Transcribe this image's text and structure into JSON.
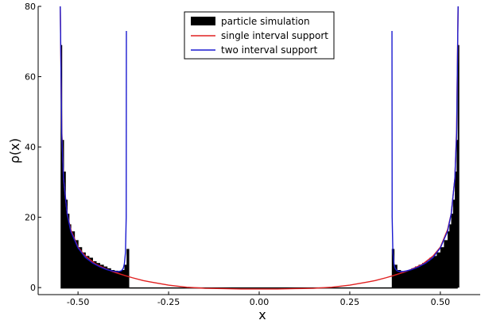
{
  "chart_data": {
    "type": "line",
    "title": "",
    "xlabel": "x",
    "ylabel": "ρ(x)",
    "xlim": [
      -0.61,
      0.61
    ],
    "ylim": [
      -2,
      80
    ],
    "x_ticks": [
      -0.5,
      -0.25,
      0,
      0.25,
      0.5
    ],
    "x_tick_labels": [
      "-0.50",
      "-0.25",
      "0.00",
      "0.25",
      "0.50"
    ],
    "y_ticks": [
      0,
      20,
      40,
      60,
      80
    ],
    "y_tick_labels": [
      "0",
      "20",
      "40",
      "60",
      "80"
    ],
    "grid": false,
    "legend_position": "top-center",
    "series": [
      {
        "name": "particle simulation",
        "kind": "histogram",
        "color": "#000000",
        "bins_x": [
          -0.548,
          -0.545,
          -0.54,
          -0.535,
          -0.53,
          -0.525,
          -0.52,
          -0.51,
          -0.5,
          -0.49,
          -0.48,
          -0.47,
          -0.46,
          -0.45,
          -0.44,
          -0.43,
          -0.42,
          -0.41,
          -0.4,
          -0.39,
          -0.38,
          -0.372,
          -0.366,
          0.366,
          0.372,
          0.38,
          0.39,
          0.4,
          0.41,
          0.42,
          0.43,
          0.44,
          0.45,
          0.46,
          0.47,
          0.48,
          0.49,
          0.5,
          0.51,
          0.52,
          0.525,
          0.53,
          0.535,
          0.54,
          0.545,
          0.548
        ],
        "bins_y": [
          69,
          42,
          33,
          25,
          21,
          18,
          16,
          13.5,
          11.5,
          10,
          9,
          8.5,
          7.5,
          7,
          6.5,
          6,
          5.5,
          5,
          4.8,
          4.7,
          5,
          6.5,
          11,
          11,
          6.5,
          5,
          4.7,
          4.8,
          5,
          5.5,
          6,
          6.5,
          7,
          7.5,
          8.5,
          9,
          10,
          11.5,
          13.5,
          16,
          18,
          21,
          25,
          33,
          42,
          69
        ]
      },
      {
        "name": "single interval support",
        "kind": "line",
        "color": "#e02020",
        "x": [
          -0.549,
          -0.545,
          -0.54,
          -0.53,
          -0.52,
          -0.5,
          -0.48,
          -0.45,
          -0.42,
          -0.4,
          -0.37,
          -0.35,
          -0.32,
          -0.3,
          -0.25,
          -0.2,
          -0.15,
          -0.1,
          -0.05,
          0,
          0.05,
          0.1,
          0.15,
          0.2,
          0.25,
          0.3,
          0.32,
          0.35,
          0.37,
          0.4,
          0.42,
          0.45,
          0.48,
          0.5,
          0.52,
          0.53,
          0.54,
          0.545,
          0.549
        ],
        "y": [
          80,
          45,
          31,
          21,
          16.5,
          11.5,
          9,
          6.6,
          5.2,
          4.4,
          3.4,
          2.8,
          2.0,
          1.6,
          0.7,
          0.1,
          -0.2,
          -0.3,
          -0.4,
          -0.4,
          -0.4,
          -0.3,
          -0.2,
          0.1,
          0.7,
          1.6,
          2.0,
          2.8,
          3.4,
          4.4,
          5.2,
          6.6,
          9,
          11.5,
          16.5,
          21,
          31,
          45,
          80
        ]
      },
      {
        "name": "two interval support",
        "kind": "line",
        "color": "#1a1ad0",
        "segments": [
          {
            "x": [
              -0.549,
              -0.545,
              -0.54,
              -0.53,
              -0.52,
              -0.5,
              -0.48,
              -0.46,
              -0.44,
              -0.42,
              -0.4,
              -0.39,
              -0.38,
              -0.375,
              -0.372,
              -0.369,
              -0.367,
              -0.3665
            ],
            "y": [
              80,
              44,
              31,
              21,
              16,
              11.3,
              8.6,
              7,
              5.9,
              5.1,
              4.6,
              4.5,
              4.8,
              5.5,
              6.8,
              10,
              20,
              73
            ]
          },
          {
            "x": [
              0.3665,
              0.367,
              0.369,
              0.372,
              0.375,
              0.38,
              0.39,
              0.4,
              0.42,
              0.44,
              0.46,
              0.48,
              0.5,
              0.52,
              0.53,
              0.54,
              0.545,
              0.549
            ],
            "y": [
              73,
              20,
              10,
              6.8,
              5.5,
              4.8,
              4.5,
              4.6,
              5.1,
              5.9,
              7,
              8.6,
              11.3,
              16,
              21,
              31,
              44,
              80
            ]
          }
        ]
      }
    ]
  }
}
